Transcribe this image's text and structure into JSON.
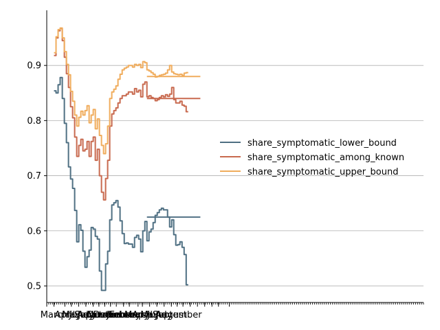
{
  "chart_data": {
    "type": "line",
    "title": "",
    "xlabel": "",
    "ylabel": "",
    "xlim": [
      0,
      52
    ],
    "ylim": [
      0.47,
      1.0
    ],
    "grid": {
      "y": true,
      "x": false
    },
    "legend_position": "center-right",
    "x_tick_positions": [
      0,
      1,
      2.5,
      3.4,
      4.4,
      5.4,
      6.4,
      7.2,
      8,
      8.8,
      9.6,
      10.6,
      11.4,
      12.6,
      13.2,
      14.2,
      15.2,
      16.2,
      17.2,
      18,
      18.8,
      19.8,
      20.8,
      21.8,
      22.8,
      23.7,
      25.2
    ],
    "x_tick_labels": [
      "",
      "March",
      "April",
      "May",
      "June",
      "July",
      "August",
      "September",
      "October",
      "November",
      "December",
      "January",
      "February",
      "March",
      "April",
      "May",
      "June",
      "July",
      "August",
      "September",
      "",
      "",
      "",
      "",
      "",
      "",
      ""
    ],
    "y_ticks": [
      0.5,
      0.6,
      0.7,
      0.8,
      0.9
    ],
    "y_tick_labels": [
      "0.5",
      "0.6",
      "0.7",
      "0.8",
      "0.9"
    ],
    "series": [
      {
        "name": "share_symptomatic_lower_bound",
        "color": "#4e6f82",
        "x": [
          0,
          0.3,
          0.5,
          0.7,
          0.9,
          1.1,
          1.3,
          1.5,
          1.7,
          1.9,
          2.1,
          2.3,
          2.5,
          2.7,
          2.9,
          3.1,
          3.3,
          3.5,
          3.7,
          3.9,
          4.1,
          4.3,
          4.5,
          4.7,
          4.9,
          5.1,
          5.3,
          5.5,
          5.7,
          5.9,
          6.1,
          6.3,
          6.5,
          6.7,
          6.9,
          7.1,
          7.3,
          7.5,
          7.7,
          7.9,
          8.1,
          8.3,
          8.5,
          8.7,
          8.9,
          9.1,
          9.3,
          9.5,
          9.7,
          9.9,
          10.1,
          10.3,
          10.5,
          10.7,
          10.9,
          11.1,
          11.3,
          11.5,
          11.7,
          11.9,
          12.1,
          12.3,
          12.5,
          12.7,
          12.9,
          13.1,
          13.3,
          13.5,
          13.7,
          13.9,
          14.1,
          14.3,
          14.5,
          14.7,
          14.9,
          15.1,
          15.3,
          15.5,
          15.7,
          15.9,
          16.1,
          16.3,
          16.5,
          16.7,
          16.9,
          17.1,
          17.3,
          17.5
        ],
        "values": [
          0.854,
          0.85,
          0.865,
          0.878,
          0.84,
          0.795,
          0.76,
          0.716,
          0.694,
          0.677,
          0.637,
          0.58,
          0.611,
          0.601,
          0.563,
          0.534,
          0.553,
          0.565,
          0.606,
          0.603,
          0.59,
          0.585,
          0.527,
          0.492,
          0.492,
          0.54,
          0.563,
          0.62,
          0.647,
          0.651,
          0.655,
          0.643,
          0.618,
          0.595,
          0.577,
          0.578,
          0.576,
          0.576,
          0.57,
          0.588,
          0.592,
          0.585,
          0.562,
          0.6,
          0.617,
          0.582,
          0.598,
          0.603,
          0.615,
          0.628,
          0.633,
          0.638,
          0.641,
          0.638,
          0.638,
          0.625,
          0.607,
          0.62,
          0.593,
          0.574,
          0.575,
          0.58,
          0.57,
          0.557,
          0.502,
          0.502,
          null,
          null,
          null,
          null,
          null,
          null,
          null,
          null,
          null,
          null,
          null,
          null,
          null,
          null,
          null,
          null,
          null,
          null,
          null,
          null,
          null,
          null
        ]
      },
      {
        "name": "share_symptomatic_among_known",
        "color": "#c8694e",
        "values": [
          0.918,
          0.95,
          0.963,
          0.967,
          0.945,
          0.915,
          0.885,
          0.86,
          0.825,
          0.805,
          0.77,
          0.735,
          0.755,
          0.766,
          0.745,
          0.748,
          0.762,
          0.735,
          0.762,
          0.77,
          0.728,
          0.748,
          0.7,
          0.67,
          0.656,
          0.695,
          0.728,
          0.79,
          0.812,
          0.818,
          0.823,
          0.832,
          0.84,
          0.845,
          0.845,
          0.848,
          0.852,
          0.852,
          0.848,
          0.858,
          0.852,
          0.855,
          0.843,
          0.866,
          0.87,
          0.843,
          0.845,
          0.842,
          0.84,
          0.836,
          0.838,
          0.842,
          0.845,
          0.843,
          0.847,
          0.844,
          0.848,
          0.86,
          0.838,
          0.832,
          0.832,
          0.835,
          0.828,
          0.826,
          0.816,
          0.816,
          null,
          null,
          null,
          null,
          null,
          null,
          null,
          null,
          null,
          null,
          null,
          null,
          null,
          null,
          null,
          null,
          null,
          null,
          null,
          null,
          null,
          null
        ]
      },
      {
        "name": "share_symptomatic_upper_bound",
        "color": "#f0ac5c",
        "values": [
          0.923,
          0.952,
          0.965,
          0.968,
          0.95,
          0.925,
          0.902,
          0.883,
          0.853,
          0.835,
          0.81,
          0.79,
          0.806,
          0.817,
          0.81,
          0.818,
          0.827,
          0.796,
          0.81,
          0.82,
          0.785,
          0.803,
          0.773,
          0.755,
          0.74,
          0.758,
          0.79,
          0.84,
          0.852,
          0.857,
          0.863,
          0.875,
          0.884,
          0.892,
          0.895,
          0.897,
          0.9,
          0.9,
          0.897,
          0.902,
          0.9,
          0.902,
          0.896,
          0.907,
          0.905,
          0.892,
          0.89,
          0.887,
          0.884,
          0.879,
          0.88,
          0.882,
          0.883,
          0.884,
          0.886,
          0.892,
          0.9,
          0.888,
          0.885,
          0.884,
          0.883,
          0.884,
          0.882,
          0.886,
          0.887,
          0.887,
          null,
          null,
          null,
          null,
          null,
          null,
          null,
          null,
          null,
          null,
          null,
          null,
          null,
          null,
          null,
          null,
          null,
          null,
          null,
          null,
          null,
          null
        ]
      }
    ],
    "constant_tail": [
      {
        "series": "share_symptomatic_lower_bound",
        "value": 0.625
      },
      {
        "series": "share_symptomatic_among_known",
        "value": 0.84
      },
      {
        "series": "share_symptomatic_upper_bound",
        "value": 0.88
      }
    ]
  }
}
